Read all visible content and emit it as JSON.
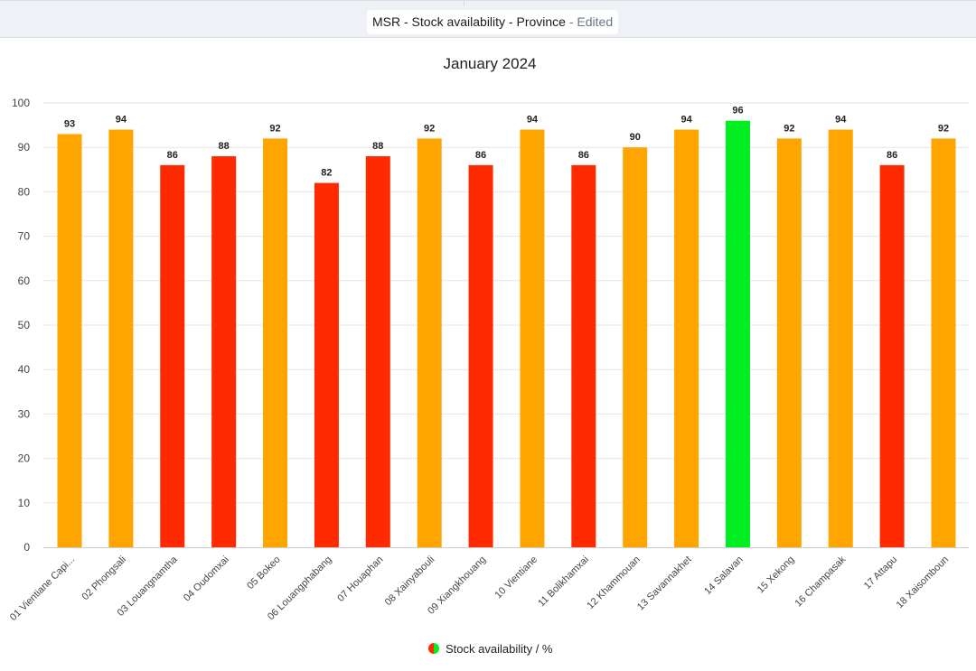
{
  "header": {
    "title": "MSR - Stock availability - Province",
    "separator": " - ",
    "edited_label": "Edited"
  },
  "chart_data": {
    "type": "bar",
    "title": "January 2024",
    "xlabel": "",
    "ylabel": "",
    "ylim": [
      0,
      100
    ],
    "yticks": [
      0,
      10,
      20,
      30,
      40,
      50,
      60,
      70,
      80,
      90,
      100
    ],
    "grid": true,
    "legend_position": "bottom-center",
    "categories": [
      "01 Vientiane Capi...",
      "02 Phongsali",
      "03 Louangnamtha",
      "04 Oudomxai",
      "05 Bokeo",
      "06 Louangphabang",
      "07 Houaphan",
      "08 Xainyabouli",
      "09 Xiangkhouang",
      "10 Vientiane",
      "11 Bolikhamxai",
      "12 Khammouan",
      "13 Savannakhet",
      "14 Salavan",
      "15 Xekong",
      "16 Champasak",
      "17 Attapu",
      "18 Xaisomboun"
    ],
    "series": [
      {
        "name": "Stock availability / %",
        "values": [
          93,
          94,
          86,
          88,
          92,
          82,
          88,
          92,
          86,
          94,
          86,
          90,
          94,
          96,
          92,
          94,
          86,
          92
        ],
        "colors": [
          "#ffa500",
          "#ffa500",
          "#ff2a00",
          "#ff2a00",
          "#ffa500",
          "#ff2a00",
          "#ff2a00",
          "#ffa500",
          "#ff2a00",
          "#ffa500",
          "#ff2a00",
          "#ffa500",
          "#ffa500",
          "#00ee22",
          "#ffa500",
          "#ffa500",
          "#ff2a00",
          "#ffa500"
        ]
      }
    ],
    "legend_colors": [
      "#ff2a00",
      "#00ee22"
    ]
  }
}
